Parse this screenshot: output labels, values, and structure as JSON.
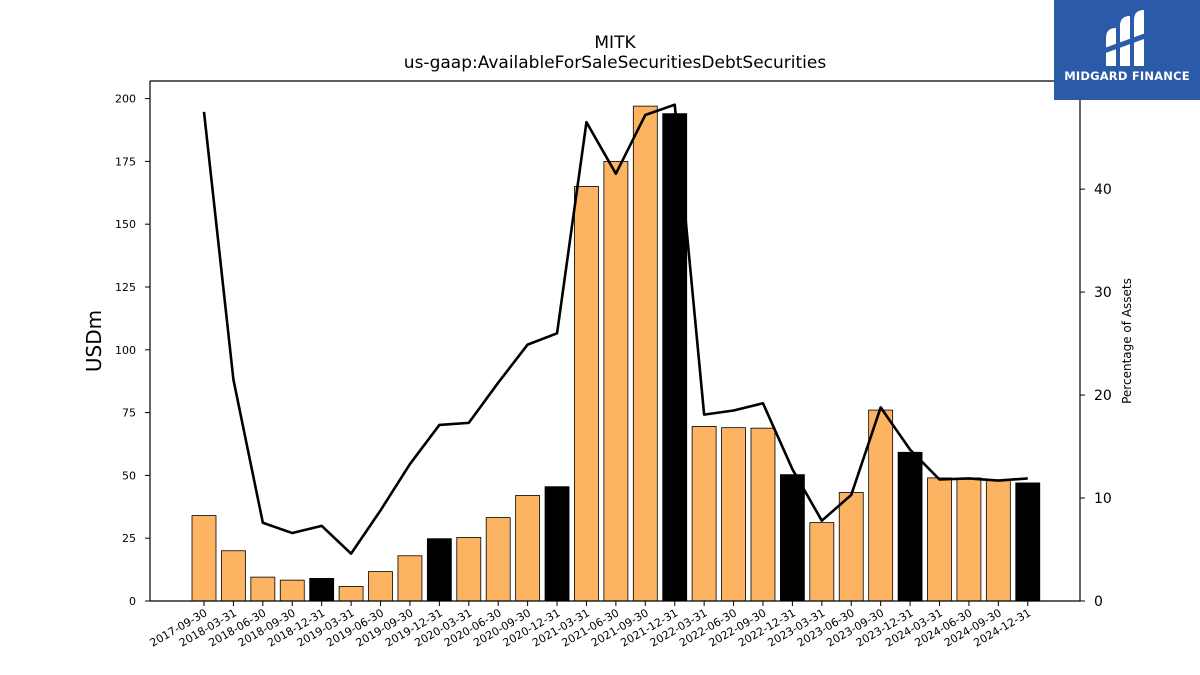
{
  "brand": {
    "name": "MIDGARD FINANCE"
  },
  "chart_data": {
    "type": "bar",
    "title": "MITK",
    "subtitle": "us-gaap:AvailableForSaleSecuritiesDebtSecurities",
    "ylabel": "USDm",
    "y2label": "Percentage of Assets",
    "ylim": [
      0,
      207
    ],
    "y2lim": [
      0,
      50.5
    ],
    "yticks": [
      0,
      25,
      50,
      75,
      100,
      125,
      150,
      175,
      200
    ],
    "y2ticks": [
      0,
      10,
      20,
      30,
      40
    ],
    "grid": false,
    "categories": [
      "2017-09-30",
      "2018-03-31",
      "2018-06-30",
      "2018-09-30",
      "2018-12-31",
      "2019-03-31",
      "2019-06-30",
      "2019-09-30",
      "2019-12-31",
      "2020-03-31",
      "2020-06-30",
      "2020-09-30",
      "2020-12-31",
      "2021-03-31",
      "2021-06-30",
      "2021-09-30",
      "2021-12-31",
      "2022-03-31",
      "2022-06-30",
      "2022-09-30",
      "2022-12-31",
      "2023-03-31",
      "2023-06-30",
      "2023-09-30",
      "2023-12-31",
      "2024-03-31",
      "2024-06-30",
      "2024-09-30",
      "2024-12-31"
    ],
    "series": [
      {
        "type": "bar",
        "values": [
          34,
          20,
          9.5,
          8.3,
          9,
          5.8,
          11.7,
          18,
          24.8,
          25.3,
          33.2,
          42,
          45.5,
          165,
          175,
          197,
          194,
          69.5,
          69,
          68.8,
          50.3,
          31.2,
          43.2,
          76,
          59.2,
          49,
          49,
          48,
          47
        ],
        "bar_colors": [
          "#fdb462",
          "#fdb462",
          "#fdb462",
          "#fdb462",
          "#000000",
          "#fdb462",
          "#fdb462",
          "#fdb462",
          "#000000",
          "#fdb462",
          "#fdb462",
          "#fdb462",
          "#000000",
          "#fdb462",
          "#fdb462",
          "#fdb462",
          "#000000",
          "#fdb462",
          "#fdb462",
          "#fdb462",
          "#000000",
          "#fdb462",
          "#fdb462",
          "#fdb462",
          "#000000",
          "#fdb462",
          "#fdb462",
          "#fdb462",
          "#000000"
        ]
      },
      {
        "type": "line",
        "axis": "right",
        "color": "#000000",
        "values": [
          47.5,
          21.5,
          7.6,
          6.6,
          7.3,
          4.6,
          8.8,
          13.3,
          17.1,
          17.3,
          21.2,
          24.9,
          26,
          46.5,
          41.5,
          47.2,
          48.2,
          18.1,
          18.5,
          19.2,
          12.8,
          7.8,
          10.3,
          18.8,
          14.7,
          11.8,
          11.9,
          11.7,
          11.9
        ]
      }
    ]
  }
}
